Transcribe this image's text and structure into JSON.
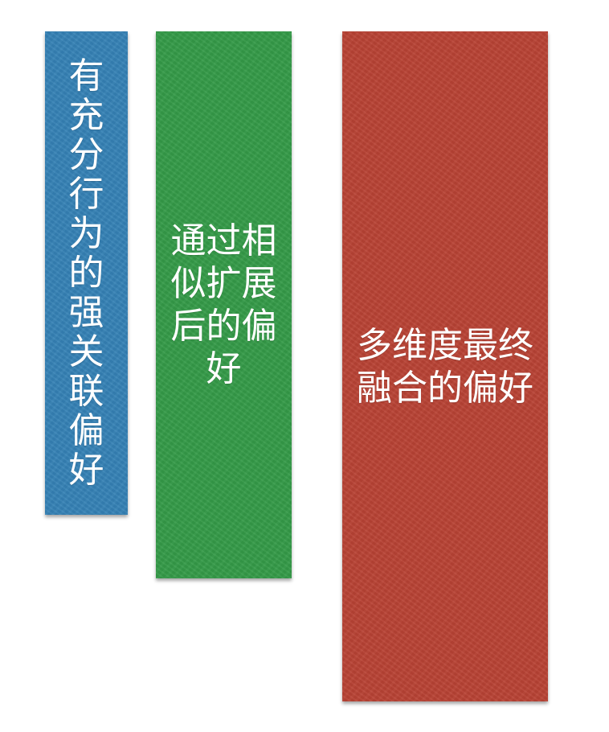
{
  "panels": {
    "blue": {
      "color": "#3581B5",
      "text": "有充分行为的强关联偏好"
    },
    "green": {
      "color": "#349A47",
      "text": "通过相似扩展后的偏好"
    },
    "red": {
      "color": "#B84234",
      "text": "多维度最终融合的偏好"
    }
  }
}
